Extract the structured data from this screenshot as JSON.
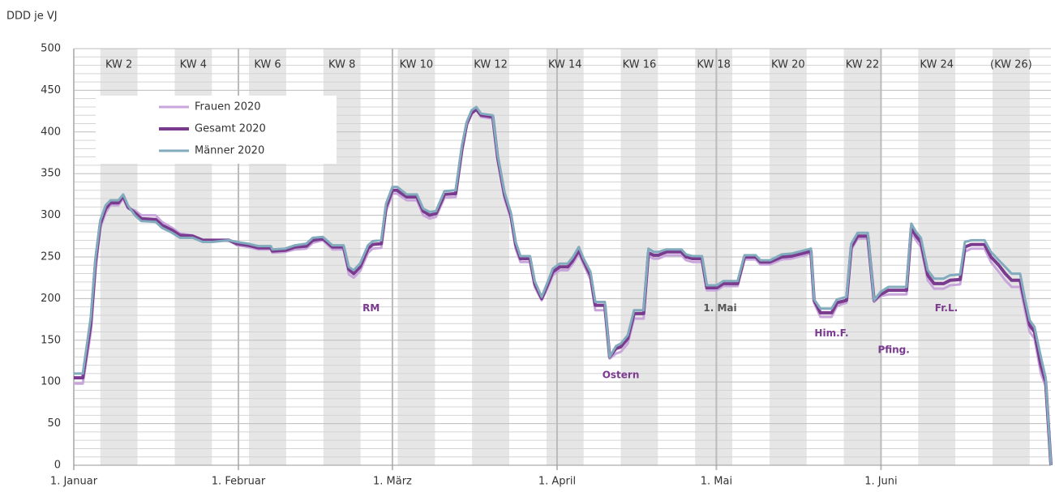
{
  "chart_data": {
    "type": "line",
    "y_label": "DDD je VJ",
    "x": [
      0,
      1.7,
      3.2,
      4.1,
      5,
      6,
      6.9,
      8.4,
      9.3,
      10.2,
      11.5,
      12.7,
      15.4,
      16.6,
      18.5,
      20,
      22.4,
      24.3,
      26.1,
      29.2,
      30.7,
      32.8,
      34.7,
      37.1,
      37.4,
      39.8,
      41.7,
      43.8,
      45,
      46.9,
      48.7,
      50.8,
      51.8,
      52.7,
      53.9,
      55.4,
      56.3,
      57.9,
      58.8,
      60,
      60.9,
      62.7,
      64.6,
      65.8,
      67,
      68.2,
      69.8,
      71.9,
      73.1,
      74,
      74.9,
      75.8,
      76.7,
      78.9,
      79.8,
      81.1,
      82.3,
      83.2,
      84.1,
      85.9,
      86.8,
      88.1,
      89.3,
      90.2,
      91.5,
      93,
      93.9,
      95.1,
      96,
      97.3,
      98.2,
      100,
      100.9,
      102.1,
      103,
      104.3,
      105.5,
      107.3,
      108.2,
      109.2,
      110.1,
      111.6,
      114.4,
      115.3,
      116.5,
      118.3,
      119.2,
      121.1,
      122.3,
      125,
      126.3,
      128.4,
      129.3,
      131.1,
      133.3,
      135.1,
      137.6,
      138.8,
      139.4,
      140.6,
      142.7,
      143.7,
      145.5,
      146.4,
      147.6,
      149.5,
      150.7,
      151.9,
      153.4,
      156.8,
      157.7,
      158.6,
      159.5,
      160.8,
      162,
      163.8,
      165,
      166.9,
      167.8,
      169,
      171.5,
      172.7,
      174.2,
      175.4,
      176.6,
      178.2,
      179.1,
      180,
      180.9,
      182.1,
      183,
      184
    ],
    "series": [
      {
        "name": "Frauen 2020",
        "color": "#c8a6db",
        "width": 3,
        "values": [
          98,
          98,
          160,
          235,
          285,
          303,
          312,
          312,
          320,
          308,
          306,
          300,
          300,
          292,
          285,
          278,
          276,
          270,
          270,
          270,
          264,
          262,
          259,
          259,
          255,
          256,
          259,
          260,
          267,
          270,
          259,
          259,
          229,
          225,
          233,
          255,
          260,
          261,
          305,
          326,
          326,
          318,
          318,
          300,
          296,
          298,
          321,
          322,
          376,
          408,
          421,
          427,
          418,
          416,
          366,
          320,
          296,
          260,
          244,
          244,
          214,
          198,
          214,
          228,
          234,
          234,
          241,
          254,
          241,
          223,
          186,
          186,
          128,
          134,
          136,
          146,
          176,
          176,
          251,
          248,
          248,
          252,
          252,
          246,
          244,
          244,
          210,
          210,
          215,
          215,
          247,
          247,
          241,
          241,
          247,
          248,
          252,
          254,
          195,
          178,
          178,
          191,
          195,
          259,
          272,
          272,
          196,
          203,
          205,
          205,
          280,
          270,
          262,
          222,
          212,
          212,
          216,
          217,
          256,
          260,
          260,
          244,
          232,
          222,
          214,
          214,
          186,
          160,
          152,
          110,
          95,
          0
        ]
      },
      {
        "name": "Gesamt 2020",
        "color": "#7a3b8f",
        "width": 4,
        "values": [
          105,
          105,
          170,
          245,
          290,
          308,
          315,
          315,
          323,
          310,
          303,
          296,
          295,
          288,
          282,
          276,
          275,
          270,
          270,
          270,
          266,
          264,
          261,
          261,
          257,
          258,
          262,
          263,
          270,
          272,
          262,
          262,
          235,
          230,
          238,
          260,
          265,
          266,
          310,
          330,
          330,
          322,
          322,
          305,
          300,
          302,
          325,
          326,
          380,
          410,
          423,
          427,
          420,
          418,
          370,
          325,
          300,
          265,
          248,
          248,
          218,
          200,
          218,
          232,
          238,
          238,
          245,
          258,
          245,
          228,
          192,
          192,
          130,
          140,
          142,
          152,
          182,
          182,
          255,
          252,
          252,
          256,
          256,
          250,
          248,
          248,
          213,
          213,
          218,
          218,
          250,
          250,
          244,
          244,
          250,
          251,
          255,
          257,
          198,
          183,
          183,
          195,
          198,
          262,
          275,
          275,
          198,
          205,
          210,
          210,
          285,
          275,
          268,
          228,
          218,
          218,
          222,
          223,
          262,
          265,
          265,
          250,
          240,
          230,
          222,
          222,
          195,
          168,
          160,
          120,
          100,
          0
        ]
      },
      {
        "name": "Männer 2020",
        "color": "#82abbd",
        "width": 3,
        "values": [
          110,
          110,
          178,
          250,
          294,
          312,
          318,
          318,
          325,
          312,
          300,
          293,
          292,
          285,
          279,
          273,
          273,
          268,
          268,
          270,
          268,
          266,
          263,
          263,
          259,
          260,
          264,
          266,
          273,
          274,
          264,
          264,
          238,
          234,
          242,
          264,
          269,
          270,
          314,
          334,
          334,
          325,
          325,
          308,
          304,
          305,
          329,
          330,
          384,
          412,
          426,
          430,
          422,
          420,
          373,
          328,
          303,
          268,
          251,
          251,
          221,
          202,
          221,
          236,
          242,
          242,
          249,
          262,
          248,
          232,
          196,
          196,
          130,
          143,
          146,
          156,
          186,
          186,
          260,
          256,
          256,
          259,
          259,
          253,
          251,
          251,
          216,
          216,
          221,
          221,
          252,
          252,
          246,
          246,
          253,
          254,
          258,
          260,
          199,
          188,
          188,
          199,
          202,
          266,
          279,
          279,
          198,
          208,
          214,
          214,
          290,
          280,
          273,
          234,
          224,
          224,
          228,
          229,
          268,
          270,
          270,
          256,
          246,
          238,
          230,
          230,
          200,
          174,
          166,
          130,
          105,
          0
        ]
      }
    ],
    "xlim": [
      0,
      184
    ],
    "xticks": [
      {
        "value": 0,
        "label": "1. Januar"
      },
      {
        "value": 31,
        "label": "1. Februar"
      },
      {
        "value": 60,
        "label": "1. März"
      },
      {
        "value": 91,
        "label": "1. April"
      },
      {
        "value": 121,
        "label": "1. Mai"
      },
      {
        "value": 152,
        "label": "1. Juni"
      }
    ],
    "ylim": [
      0,
      500
    ],
    "yticks": [
      0,
      50,
      100,
      150,
      200,
      250,
      300,
      350,
      400,
      450,
      500
    ],
    "minor_yticks": [
      10,
      20,
      30,
      40,
      60,
      70,
      80,
      90,
      110,
      120,
      130,
      140,
      160,
      170,
      180,
      190,
      210,
      220,
      230,
      240,
      260,
      270,
      280,
      290,
      310,
      320,
      330,
      340,
      360,
      370,
      380,
      390,
      410,
      420,
      430,
      440,
      460,
      470,
      480,
      490
    ],
    "grid": true,
    "legend": "upper left",
    "week_bands": [
      {
        "label": "KW 2",
        "x": [
          5,
          12
        ]
      },
      {
        "label": "KW 4",
        "x": [
          19,
          26
        ]
      },
      {
        "label": "KW 6",
        "x": [
          33,
          40
        ]
      },
      {
        "label": "KW 8",
        "x": [
          47,
          54
        ]
      },
      {
        "label": "KW 10",
        "x": [
          61,
          68
        ]
      },
      {
        "label": "KW 12",
        "x": [
          75,
          82
        ]
      },
      {
        "label": "KW 14",
        "x": [
          89,
          96
        ]
      },
      {
        "label": "KW 16",
        "x": [
          103,
          110
        ]
      },
      {
        "label": "KW 18",
        "x": [
          117,
          124
        ]
      },
      {
        "label": "KW 20",
        "x": [
          131,
          138
        ]
      },
      {
        "label": "KW 22",
        "x": [
          145,
          152
        ]
      },
      {
        "label": "KW 24",
        "x": [
          159,
          166
        ]
      },
      {
        "label": "(KW 26)",
        "x": [
          173,
          180
        ]
      }
    ],
    "annotations": [
      {
        "text": "RM",
        "x": 56,
        "y": 188,
        "color": "#7a3b8f"
      },
      {
        "text": "Ostern",
        "x": 103,
        "y": 108,
        "color": "#7a3b8f"
      },
      {
        "text": "1. Mai",
        "x": 121.7,
        "y": 188,
        "color": "#555555"
      },
      {
        "text": "Him.F.",
        "x": 142.7,
        "y": 158,
        "color": "#7a3b8f"
      },
      {
        "text": "Pfing.",
        "x": 154.4,
        "y": 138,
        "color": "#7a3b8f"
      },
      {
        "text": "Fr.L.",
        "x": 164.3,
        "y": 188,
        "color": "#7a3b8f"
      }
    ]
  }
}
